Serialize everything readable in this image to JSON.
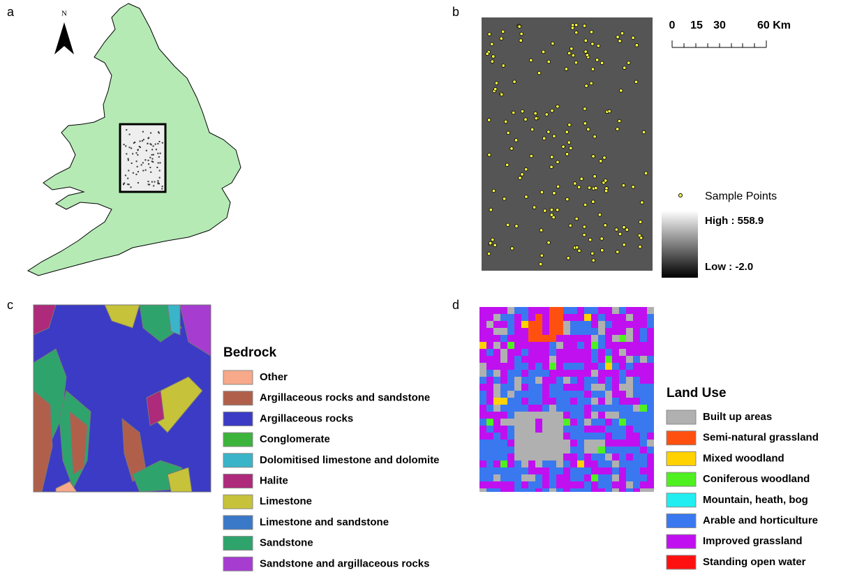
{
  "panels": {
    "a": {
      "label": "a",
      "north": "N"
    },
    "b": {
      "label": "b",
      "scale_bar": {
        "ticks": [
          "0",
          "15",
          "30",
          "60 Km"
        ]
      },
      "legend": {
        "points": "Sample Points",
        "high": "High : 558.9",
        "low": "Low : -2.0"
      }
    },
    "c": {
      "label": "c",
      "legend": {
        "title": "Bedrock",
        "items": [
          {
            "label": "Other",
            "color": "#f7a98a"
          },
          {
            "label": "Argillaceous rocks and sandstone",
            "color": "#b0604a"
          },
          {
            "label": "Argillaceous rocks",
            "color": "#3b3bc6"
          },
          {
            "label": "Conglomerate",
            "color": "#3cb43c"
          },
          {
            "label": "Dolomitised limestone and dolomite",
            "color": "#3ab4c8"
          },
          {
            "label": "Halite",
            "color": "#ae2a7a"
          },
          {
            "label": "Limestone",
            "color": "#c6c23a"
          },
          {
            "label": "Limestone and sandstone",
            "color": "#3a78c8"
          },
          {
            "label": "Sandstone",
            "color": "#2ea46c"
          },
          {
            "label": "Sandstone and argillaceous rocks",
            "color": "#a63cd0"
          }
        ]
      }
    },
    "d": {
      "label": "d",
      "legend": {
        "title": "Land Use",
        "items": [
          {
            "label": "Built up areas",
            "color": "#b0b0b0"
          },
          {
            "label": "Semi-natural grassland",
            "color": "#ff5010"
          },
          {
            "label": "Mixed woodland",
            "color": "#ffd200"
          },
          {
            "label": "Coniferous woodland",
            "color": "#4ef020"
          },
          {
            "label": "Mountain, heath, bog",
            "color": "#20eef0"
          },
          {
            "label": "Arable and horticulture",
            "color": "#3a78f0"
          },
          {
            "label": "Improved grassland",
            "color": "#c010f0"
          },
          {
            "label": "Standing open water",
            "color": "#ff1010"
          }
        ]
      }
    }
  }
}
